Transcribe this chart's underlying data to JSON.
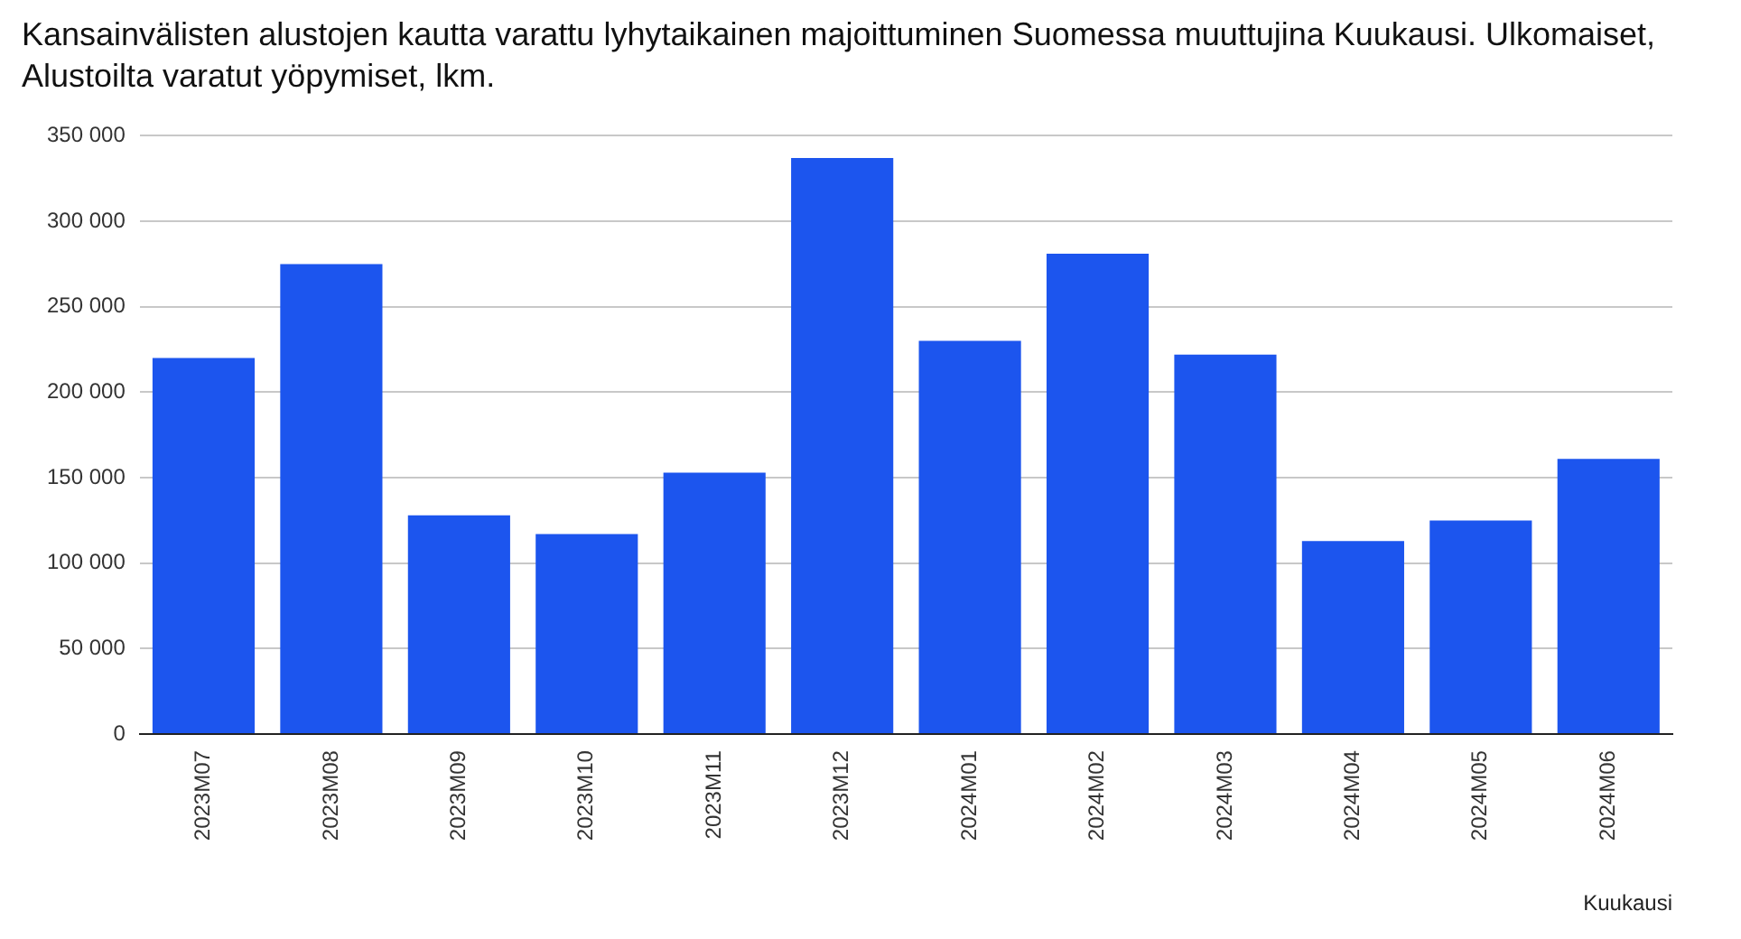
{
  "chart_data": {
    "type": "bar",
    "title": "Kansainvälisten alustojen kautta varattu lyhytaikainen majoittuminen Suomessa muuttujina Kuukausi. Ulkomaiset, Alustoilta varatut yöpymiset, lkm.",
    "xlabel": "Kuukausi",
    "categories": [
      "2023M07",
      "2023M08",
      "2023M09",
      "2023M10",
      "2023M11",
      "2023M12",
      "2024M01",
      "2024M02",
      "2024M03",
      "2024M04",
      "2024M05",
      "2024M06"
    ],
    "values": [
      220000,
      275000,
      128000,
      117000,
      153000,
      337000,
      230000,
      281000,
      222000,
      113000,
      125000,
      161000
    ],
    "color": "#1c55ee",
    "ylim": [
      0,
      350000
    ],
    "yticks": [
      {
        "value": 0,
        "label": "0"
      },
      {
        "value": 50000,
        "label": "50 000"
      },
      {
        "value": 100000,
        "label": "100 000"
      },
      {
        "value": 150000,
        "label": "150 000"
      },
      {
        "value": 200000,
        "label": "200 000"
      },
      {
        "value": 250000,
        "label": "250 000"
      },
      {
        "value": 300000,
        "label": "300 000"
      },
      {
        "value": 350000,
        "label": "350 000"
      }
    ],
    "grid": "y",
    "legend": false
  }
}
